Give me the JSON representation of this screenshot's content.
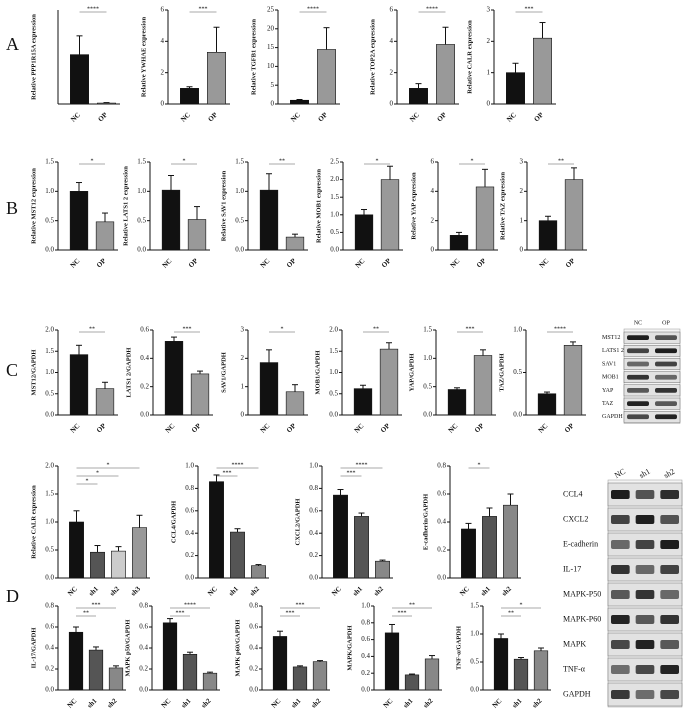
{
  "panels": [
    "A",
    "B",
    "C",
    "D"
  ],
  "chart_data": [
    {
      "type": "bar",
      "ylabel": "Relative PPP1R15A expression",
      "categories": [
        "NC",
        "OP"
      ],
      "values": [
        1.05,
        0.02
      ],
      "errors": [
        0.4,
        0.01
      ],
      "colors": [
        "#111111",
        "#999999"
      ],
      "ylim": [
        0,
        2
      ],
      "significance": [
        "****"
      ]
    },
    {
      "type": "bar",
      "ylabel": "Relative YWHAE expression",
      "categories": [
        "NC",
        "OP"
      ],
      "values": [
        1,
        3.3
      ],
      "errors": [
        0.1,
        1.6
      ],
      "colors": [
        "#111111",
        "#999999"
      ],
      "ylim": [
        0,
        6
      ],
      "yticks": [
        0,
        2,
        4,
        6
      ],
      "significance": [
        "***"
      ]
    },
    {
      "type": "bar",
      "ylabel": "Relative TGFB1 expression",
      "categories": [
        "NC",
        "OP"
      ],
      "values": [
        1,
        14.5
      ],
      "errors": [
        0.2,
        5.8
      ],
      "colors": [
        "#111111",
        "#999999"
      ],
      "ylim": [
        0,
        25
      ],
      "yticks": [
        0,
        5,
        10,
        15,
        20,
        25
      ],
      "significance": [
        "****"
      ]
    },
    {
      "type": "bar",
      "ylabel": "Relative TOP2A expression",
      "categories": [
        "NC",
        "OP"
      ],
      "values": [
        1,
        3.8
      ],
      "errors": [
        0.3,
        1.1
      ],
      "colors": [
        "#111111",
        "#999999"
      ],
      "ylim": [
        0,
        6
      ],
      "yticks": [
        0,
        2,
        4,
        6
      ],
      "significance": [
        "****"
      ]
    },
    {
      "type": "bar",
      "ylabel": "Relative CALR expression",
      "categories": [
        "NC",
        "OP"
      ],
      "values": [
        1,
        2.1
      ],
      "errors": [
        0.3,
        0.5
      ],
      "colors": [
        "#111111",
        "#999999"
      ],
      "ylim": [
        0,
        3
      ],
      "yticks": [
        0,
        1,
        2,
        3
      ],
      "significance": [
        "***"
      ]
    },
    {
      "type": "bar",
      "ylabel": "Relative MST12 expression",
      "categories": [
        "NC",
        "OP"
      ],
      "values": [
        1.0,
        0.48
      ],
      "errors": [
        0.15,
        0.15
      ],
      "colors": [
        "#111111",
        "#999999"
      ],
      "ylim": [
        0,
        1.5
      ],
      "yticks": [
        {
          "value": 0,
          "label": "0.0"
        },
        0.5,
        {
          "value": 1,
          "label": "1.0"
        },
        1.5
      ],
      "significance": [
        "*"
      ]
    },
    {
      "type": "bar",
      "ylabel": "Relative LATS1 2 expression",
      "categories": [
        "NC",
        "OP"
      ],
      "values": [
        1.02,
        0.52
      ],
      "errors": [
        0.25,
        0.22
      ],
      "colors": [
        "#111111",
        "#999999"
      ],
      "ylim": [
        0,
        1.5
      ],
      "yticks": [
        {
          "value": 0,
          "label": "0.0"
        },
        0.5,
        {
          "value": 1,
          "label": "1.0"
        },
        1.5
      ],
      "significance": [
        "*"
      ]
    },
    {
      "type": "bar",
      "ylabel": "Relative SAV1 expression",
      "categories": [
        "NC",
        "OP"
      ],
      "values": [
        1.02,
        0.22
      ],
      "errors": [
        0.28,
        0.05
      ],
      "colors": [
        "#111111",
        "#999999"
      ],
      "ylim": [
        0,
        1.5
      ],
      "yticks": [
        {
          "value": 0,
          "label": "0.0"
        },
        0.5,
        {
          "value": 1,
          "label": "1.0"
        },
        1.5
      ],
      "significance": [
        "**"
      ]
    },
    {
      "type": "bar",
      "ylabel": "Relative MOB1 expression",
      "categories": [
        "NC",
        "OP"
      ],
      "values": [
        1.0,
        2.0
      ],
      "errors": [
        0.15,
        0.38
      ],
      "colors": [
        "#111111",
        "#999999"
      ],
      "ylim": [
        0,
        2.5
      ],
      "yticks": [
        {
          "value": 0,
          "label": "0.0"
        },
        0.5,
        {
          "value": 1,
          "label": "1.0"
        },
        1.5,
        {
          "value": 2,
          "label": "2.0"
        },
        2.5
      ],
      "significance": [
        "*"
      ]
    },
    {
      "type": "bar",
      "ylabel": "Relative YAP expression",
      "categories": [
        "NC",
        "OP"
      ],
      "values": [
        1,
        4.3
      ],
      "errors": [
        0.2,
        1.2
      ],
      "colors": [
        "#111111",
        "#999999"
      ],
      "ylim": [
        0,
        6
      ],
      "yticks": [
        0,
        2,
        4,
        6
      ],
      "significance": [
        "*"
      ]
    },
    {
      "type": "bar",
      "ylabel": "Relative TAZ expression",
      "categories": [
        "NC",
        "OP"
      ],
      "values": [
        1,
        2.4
      ],
      "errors": [
        0.15,
        0.4
      ],
      "colors": [
        "#111111",
        "#999999"
      ],
      "ylim": [
        0,
        3
      ],
      "yticks": [
        0,
        1,
        2,
        3
      ],
      "significance": [
        "**"
      ]
    },
    {
      "type": "bar",
      "ylabel": "MST12/GAPDH",
      "categories": [
        "NC",
        "OP"
      ],
      "values": [
        1.42,
        0.62
      ],
      "errors": [
        0.22,
        0.15
      ],
      "colors": [
        "#111111",
        "#999999"
      ],
      "ylim": [
        0,
        2
      ],
      "yticks": [
        {
          "value": 0,
          "label": "0.0"
        },
        0.5,
        {
          "value": 1,
          "label": "1.0"
        },
        1.5,
        {
          "value": 2,
          "label": "2.0"
        }
      ],
      "significance": [
        "**"
      ]
    },
    {
      "type": "bar",
      "ylabel": "LATS1 2/GAPDH",
      "categories": [
        "NC",
        "OP"
      ],
      "values": [
        0.52,
        0.29
      ],
      "errors": [
        0.03,
        0.02
      ],
      "colors": [
        "#111111",
        "#999999"
      ],
      "ylim": [
        0,
        0.6
      ],
      "yticks": [
        {
          "value": 0,
          "label": "0.0"
        },
        0.2,
        0.4,
        0.6
      ],
      "significance": [
        "***"
      ]
    },
    {
      "type": "bar",
      "ylabel": "SAV1/GAPDH",
      "categories": [
        "NC",
        "OP"
      ],
      "values": [
        1.85,
        0.82
      ],
      "errors": [
        0.45,
        0.25
      ],
      "colors": [
        "#111111",
        "#999999"
      ],
      "ylim": [
        0,
        3
      ],
      "yticks": [
        0,
        1,
        2,
        3
      ],
      "significance": [
        "*"
      ]
    },
    {
      "type": "bar",
      "ylabel": "MOB1/GAPDH",
      "categories": [
        "NC",
        "OP"
      ],
      "values": [
        0.62,
        1.55
      ],
      "errors": [
        0.08,
        0.15
      ],
      "colors": [
        "#111111",
        "#999999"
      ],
      "ylim": [
        0,
        2
      ],
      "yticks": [
        {
          "value": 0,
          "label": "0.0"
        },
        0.5,
        {
          "value": 1,
          "label": "1.0"
        },
        1.5,
        {
          "value": 2,
          "label": "2.0"
        }
      ],
      "significance": [
        "**"
      ]
    },
    {
      "type": "bar",
      "ylabel": "YAP/GAPDH",
      "categories": [
        "NC",
        "OP"
      ],
      "values": [
        0.45,
        1.05
      ],
      "errors": [
        0.03,
        0.1
      ],
      "colors": [
        "#111111",
        "#999999"
      ],
      "ylim": [
        0,
        1.5
      ],
      "yticks": [
        {
          "value": 0,
          "label": "0.0"
        },
        0.5,
        {
          "value": 1,
          "label": "1.0"
        },
        1.5
      ],
      "significance": [
        "***"
      ]
    },
    {
      "type": "bar",
      "ylabel": "TAZ/GAPDH",
      "categories": [
        "NC",
        "OP"
      ],
      "values": [
        0.25,
        0.82
      ],
      "errors": [
        0.02,
        0.04
      ],
      "colors": [
        "#111111",
        "#999999"
      ],
      "ylim": [
        0,
        1
      ],
      "yticks": [
        {
          "value": 0,
          "label": "0.0"
        },
        0.5,
        {
          "value": 1,
          "label": "1.0"
        }
      ],
      "significance": [
        "****"
      ]
    },
    {
      "type": "bar",
      "ylabel": "Relative CALR expression",
      "categories": [
        "NC",
        "sh1",
        "sh2",
        "sh3"
      ],
      "values": [
        1.0,
        0.46,
        0.48,
        0.9
      ],
      "errors": [
        0.2,
        0.12,
        0.08,
        0.22
      ],
      "colors": [
        "#111111",
        "#555555",
        "#cccccc",
        "#999999"
      ],
      "ylim": [
        0,
        2
      ],
      "yticks": [
        {
          "value": 0,
          "label": "0.0"
        },
        0.5,
        {
          "value": 1,
          "label": "1.0"
        },
        1.5,
        {
          "value": 2,
          "label": "2.0"
        }
      ],
      "significance": [
        "*",
        "*",
        "*"
      ]
    },
    {
      "type": "bar",
      "ylabel": "CCL4/GAPDH",
      "categories": [
        "NC",
        "sh1",
        "sh2"
      ],
      "values": [
        0.86,
        0.41,
        0.11
      ],
      "errors": [
        0.06,
        0.03,
        0.01
      ],
      "colors": [
        "#111111",
        "#555555",
        "#888888"
      ],
      "ylim": [
        0,
        1
      ],
      "yticks": [
        {
          "value": 0,
          "label": "0.0"
        },
        0.2,
        0.4,
        0.6,
        0.8,
        {
          "value": 1,
          "label": "1.0"
        }
      ],
      "significance": [
        "***",
        "****"
      ]
    },
    {
      "type": "bar",
      "ylabel": "CXCL2/GAPDH",
      "categories": [
        "NC",
        "sh1",
        "sh2"
      ],
      "values": [
        0.74,
        0.55,
        0.15
      ],
      "errors": [
        0.05,
        0.03,
        0.01
      ],
      "colors": [
        "#111111",
        "#555555",
        "#888888"
      ],
      "ylim": [
        0,
        1
      ],
      "yticks": [
        {
          "value": 0,
          "label": "0.0"
        },
        0.2,
        0.4,
        0.6,
        0.8,
        {
          "value": 1,
          "label": "1.0"
        }
      ],
      "significance": [
        "***",
        "****"
      ]
    },
    {
      "type": "bar",
      "ylabel": "E-cadherin/GAPDH",
      "categories": [
        "NC",
        "sh1",
        "sh2"
      ],
      "values": [
        0.35,
        0.44,
        0.52
      ],
      "errors": [
        0.04,
        0.06,
        0.08
      ],
      "colors": [
        "#111111",
        "#555555",
        "#888888"
      ],
      "ylim": [
        0,
        0.8
      ],
      "yticks": [
        {
          "value": 0,
          "label": "0.0"
        },
        0.2,
        0.4,
        0.6,
        0.8
      ],
      "significance": [
        "*"
      ]
    },
    {
      "type": "bar",
      "ylabel": "IL-17/GAPDH",
      "categories": [
        "NC",
        "sh1",
        "sh2"
      ],
      "values": [
        0.55,
        0.38,
        0.21
      ],
      "errors": [
        0.05,
        0.03,
        0.02
      ],
      "colors": [
        "#111111",
        "#555555",
        "#888888"
      ],
      "ylim": [
        0,
        0.8
      ],
      "yticks": [
        {
          "value": 0,
          "label": "0.0"
        },
        0.2,
        0.4,
        0.6,
        0.8
      ],
      "significance": [
        "**",
        "***"
      ]
    },
    {
      "type": "bar",
      "ylabel": "MAPK p50/GAPDH",
      "categories": [
        "NC",
        "sh1",
        "sh2"
      ],
      "values": [
        0.64,
        0.34,
        0.16
      ],
      "errors": [
        0.04,
        0.02,
        0.01
      ],
      "colors": [
        "#111111",
        "#555555",
        "#888888"
      ],
      "ylim": [
        0,
        0.8
      ],
      "yticks": [
        {
          "value": 0,
          "label": "0.0"
        },
        0.2,
        0.4,
        0.6,
        0.8
      ],
      "significance": [
        "***",
        "****"
      ]
    },
    {
      "type": "bar",
      "ylabel": "MAPK p60/GAPDH",
      "categories": [
        "NC",
        "sh1",
        "sh2"
      ],
      "values": [
        0.51,
        0.22,
        0.27
      ],
      "errors": [
        0.05,
        0.01,
        0.01
      ],
      "colors": [
        "#111111",
        "#555555",
        "#888888"
      ],
      "ylim": [
        0,
        0.8
      ],
      "yticks": [
        {
          "value": 0,
          "label": "0.0"
        },
        0.2,
        0.4,
        0.6,
        0.8
      ],
      "significance": [
        "***",
        "***"
      ]
    },
    {
      "type": "bar",
      "ylabel": "MAPK/GAPDH",
      "categories": [
        "NC",
        "sh1",
        "sh2"
      ],
      "values": [
        0.68,
        0.18,
        0.37
      ],
      "errors": [
        0.1,
        0.01,
        0.04
      ],
      "colors": [
        "#111111",
        "#555555",
        "#888888"
      ],
      "ylim": [
        0,
        1
      ],
      "yticks": [
        {
          "value": 0,
          "label": "0.0"
        },
        0.2,
        0.4,
        0.6,
        0.8,
        {
          "value": 1,
          "label": "1.0"
        }
      ],
      "significance": [
        "***",
        "**"
      ]
    },
    {
      "type": "bar",
      "ylabel": "TNF-α/GAPDH",
      "categories": [
        "NC",
        "sh1",
        "sh2"
      ],
      "values": [
        0.92,
        0.55,
        0.7
      ],
      "errors": [
        0.08,
        0.03,
        0.05
      ],
      "colors": [
        "#111111",
        "#555555",
        "#888888"
      ],
      "ylim": [
        0,
        1.5
      ],
      "yticks": [
        {
          "value": 0,
          "label": "0.0"
        },
        0.5,
        {
          "value": 1,
          "label": "1.0"
        },
        1.5
      ],
      "significance": [
        "**",
        "*"
      ]
    }
  ],
  "blots": [
    {
      "columns": [
        "NC",
        "OP"
      ],
      "rows": [
        "MST12",
        "LATS1 2",
        "SAV1",
        "MOB1",
        "YAP",
        "TAZ",
        "GAPDH"
      ]
    },
    {
      "columns": [
        "NC",
        "sh1",
        "sh2"
      ],
      "rows": [
        "CCL4",
        "CXCL2",
        "E-cadherin",
        "IL-17",
        "MAPK-P50",
        "MAPK-P60",
        "MAPK",
        "TNF-α",
        "GAPDH"
      ]
    }
  ]
}
